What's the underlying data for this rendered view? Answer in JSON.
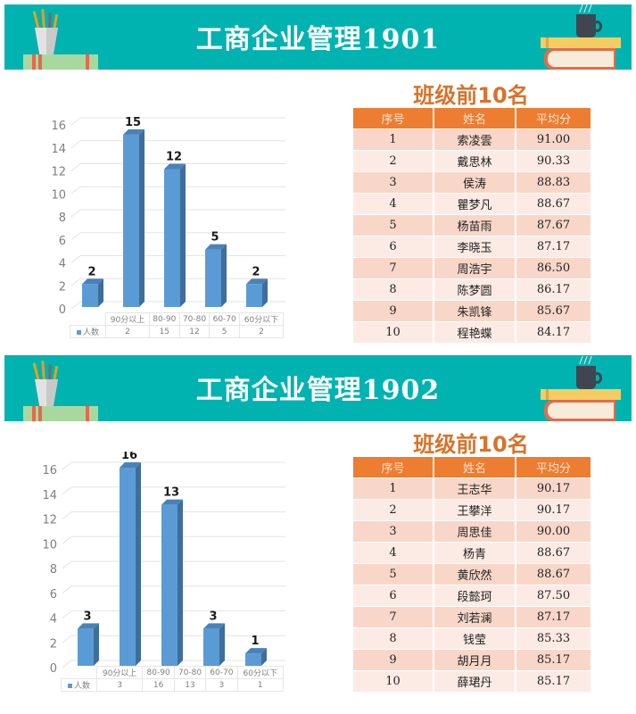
{
  "sections": [
    {
      "banner": {
        "title": "工商企业管理1901",
        "bg_color": "#00b2b0"
      },
      "ranking": {
        "title": "班级前10名",
        "headers": [
          "序号",
          "姓名",
          "平均分"
        ],
        "rows": [
          [
            "1",
            "索凌雲",
            "91.00"
          ],
          [
            "2",
            "戴思林",
            "90.33"
          ],
          [
            "3",
            "侯涛",
            "88.83"
          ],
          [
            "4",
            "瞿梦凡",
            "88.67"
          ],
          [
            "5",
            "杨苗雨",
            "87.67"
          ],
          [
            "6",
            "李晓玉",
            "87.17"
          ],
          [
            "7",
            "周浩宇",
            "86.50"
          ],
          [
            "8",
            "陈梦圆",
            "86.17"
          ],
          [
            "9",
            "朱凯锋",
            "85.67"
          ],
          [
            "10",
            "程艳蝶",
            "84.17"
          ]
        ]
      }
    },
    {
      "banner": {
        "title": "工商企业管理1902",
        "bg_color": "#00b2b0"
      },
      "ranking": {
        "title": "班级前10名",
        "headers": [
          "序号",
          "姓名",
          "平均分"
        ],
        "rows": [
          [
            "1",
            "王志华",
            "90.17"
          ],
          [
            "2",
            "王攀洋",
            "90.17"
          ],
          [
            "3",
            "周思佳",
            "90.00"
          ],
          [
            "4",
            "杨青",
            "88.67"
          ],
          [
            "5",
            "黄欣然",
            "88.67"
          ],
          [
            "6",
            "段懿珂",
            "87.50"
          ],
          [
            "7",
            "刘若澜",
            "87.17"
          ],
          [
            "8",
            "钱莹",
            "85.33"
          ],
          [
            "9",
            "胡月月",
            "85.17"
          ],
          [
            "10",
            "薛珺丹",
            "85.17"
          ]
        ]
      }
    }
  ],
  "chart_data": [
    {
      "type": "bar",
      "title": "",
      "categories": [
        "90分以上",
        "80-90",
        "70-80",
        "60-70",
        "60分以下"
      ],
      "series": [
        {
          "name": "人数",
          "values": [
            2,
            15,
            12,
            5,
            2
          ],
          "color": "#5b9bd5"
        }
      ],
      "yticks": [
        0,
        2,
        4,
        6,
        8,
        10,
        12,
        14,
        16
      ],
      "ylim": [
        0,
        16
      ],
      "xlabel": "",
      "ylabel": "",
      "grid": true,
      "data_table": true,
      "legend": "data-table"
    },
    {
      "type": "bar",
      "title": "",
      "categories": [
        "90分以上",
        "80-90",
        "70-80",
        "60-70",
        "60分以下"
      ],
      "series": [
        {
          "name": "人数",
          "values": [
            3,
            16,
            13,
            3,
            1
          ],
          "color": "#5b9bd5"
        }
      ],
      "yticks": [
        0,
        2,
        4,
        6,
        8,
        10,
        12,
        14,
        16
      ],
      "ylim": [
        0,
        16
      ],
      "xlabel": "",
      "ylabel": "",
      "grid": true,
      "data_table": true,
      "legend": "data-table"
    }
  ]
}
